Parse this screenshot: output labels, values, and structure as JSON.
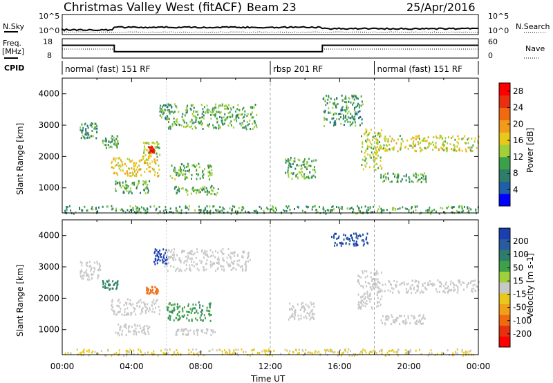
{
  "header": {
    "site": "Christmas Valley West (fitACF)",
    "beam": "Beam 23",
    "date": "25/Apr/2016"
  },
  "top_panels": {
    "nsky_label": "N.Sky",
    "nsearch_label": "N.Search",
    "nsky_ticks": [
      "10^5",
      "10^0"
    ],
    "freq_label": "Freq.",
    "freq_unit": "[MHz]",
    "freq_ticks": [
      "18",
      "8"
    ],
    "nave_label": "Nave",
    "nave_ticks": [
      "60",
      "0"
    ],
    "cpid_label": "CPID",
    "cpid_modes": [
      {
        "label": "normal (fast) 151 RF",
        "start_hour": 0
      },
      {
        "label": "rbsp 201 RF",
        "start_hour": 12
      },
      {
        "label": "normal (fast) 151 RF",
        "start_hour": 18
      }
    ],
    "freq_series_mhz": [
      {
        "from": 0,
        "to": 3,
        "value": 14.6
      },
      {
        "from": 3,
        "to": 15,
        "value": 11.3
      },
      {
        "from": 15,
        "to": 24,
        "value": 14.6
      }
    ]
  },
  "chart_data": [
    {
      "type": "heatmap",
      "title": "",
      "xlabel": "Time UT",
      "ylabel": "Slant Range [km]",
      "xlim": [
        0,
        24
      ],
      "ylim": [
        200,
        4500
      ],
      "yticks": [
        1000,
        2000,
        3000,
        4000
      ],
      "colorbar": {
        "label": "Power [dB]",
        "ticks": [
          4,
          8,
          12,
          16,
          20,
          24,
          28
        ],
        "range": [
          0,
          30
        ],
        "colors": [
          "#0000ff",
          "#1f5fa8",
          "#2e7d6a",
          "#3aa04a",
          "#9fd03a",
          "#e8c81a",
          "#f29a1a",
          "#f06a10",
          "#e83010",
          "#ff0000"
        ]
      },
      "echo_regions": [
        {
          "t0": 1.0,
          "t1": 2.0,
          "r0": 2600,
          "r1": 3100,
          "value": 9
        },
        {
          "t0": 2.3,
          "t1": 3.2,
          "r0": 2300,
          "r1": 2700,
          "value": 10
        },
        {
          "t0": 2.8,
          "t1": 5.6,
          "r0": 1400,
          "r1": 2000,
          "value": 17
        },
        {
          "t0": 3.0,
          "t1": 5.0,
          "r0": 850,
          "r1": 1250,
          "value": 10
        },
        {
          "t0": 4.6,
          "t1": 5.6,
          "r0": 2000,
          "r1": 2500,
          "value": 14
        },
        {
          "t0": 4.9,
          "t1": 5.3,
          "r0": 2150,
          "r1": 2350,
          "value": 28
        },
        {
          "t0": 5.6,
          "t1": 6.3,
          "r0": 3200,
          "r1": 3700,
          "value": 9
        },
        {
          "t0": 6.0,
          "t1": 11.2,
          "r0": 2900,
          "r1": 3700,
          "value": 11
        },
        {
          "t0": 6.2,
          "t1": 8.6,
          "r0": 1300,
          "r1": 1800,
          "value": 12
        },
        {
          "t0": 6.4,
          "t1": 9.0,
          "r0": 800,
          "r1": 1100,
          "value": 11
        },
        {
          "t0": 12.8,
          "t1": 14.6,
          "r0": 1300,
          "r1": 2000,
          "value": 11
        },
        {
          "t0": 15.0,
          "t1": 17.3,
          "r0": 3000,
          "r1": 4000,
          "value": 9
        },
        {
          "t0": 17.2,
          "t1": 18.4,
          "r0": 1600,
          "r1": 2900,
          "value": 14
        },
        {
          "t0": 18.0,
          "t1": 24.0,
          "r0": 2200,
          "r1": 2700,
          "value": 15
        },
        {
          "t0": 18.3,
          "t1": 21.0,
          "r0": 1200,
          "r1": 1500,
          "value": 11
        },
        {
          "t0": 0.0,
          "t1": 24.0,
          "r0": 200,
          "r1": 450,
          "value": 10
        }
      ]
    },
    {
      "type": "heatmap",
      "title": "",
      "xlabel": "Time UT",
      "ylabel": "Slant Range [km]",
      "xlim": [
        0,
        24
      ],
      "ylim": [
        200,
        4500
      ],
      "yticks": [
        1000,
        2000,
        3000,
        4000
      ],
      "xticks": [
        "00:00",
        "04:00",
        "08:00",
        "12:00",
        "16:00",
        "20:00",
        "00:00"
      ],
      "colorbar": {
        "label": "Velocity [m s-1]",
        "ticks": [
          200,
          100,
          50,
          15,
          -15,
          -50,
          -100,
          -200
        ],
        "colors": [
          "#1a3fb0",
          "#2a5aa0",
          "#2e7d6a",
          "#3fa04a",
          "#9fd03a",
          "#c8c8c8",
          "#e8c81a",
          "#f2a01a",
          "#f06a10",
          "#e83010",
          "#ff0000"
        ]
      },
      "echo_regions": [
        {
          "t0": 1.0,
          "t1": 2.2,
          "r0": 2600,
          "r1": 3200,
          "value": 0
        },
        {
          "t0": 2.3,
          "t1": 3.2,
          "r0": 2300,
          "r1": 2600,
          "value": 60
        },
        {
          "t0": 2.8,
          "t1": 5.6,
          "r0": 1500,
          "r1": 2000,
          "value": 0
        },
        {
          "t0": 4.8,
          "t1": 5.5,
          "r0": 2150,
          "r1": 2400,
          "value": -150
        },
        {
          "t0": 5.2,
          "t1": 6.0,
          "r0": 3100,
          "r1": 3600,
          "value": 250
        },
        {
          "t0": 5.8,
          "t1": 10.8,
          "r0": 2900,
          "r1": 3600,
          "value": 0
        },
        {
          "t0": 6.0,
          "t1": 8.6,
          "r0": 1300,
          "r1": 1900,
          "value": 40
        },
        {
          "t0": 3.0,
          "t1": 5.0,
          "r0": 850,
          "r1": 1200,
          "value": 0
        },
        {
          "t0": 6.4,
          "t1": 8.8,
          "r0": 850,
          "r1": 1050,
          "value": 0
        },
        {
          "t0": 13.0,
          "t1": 14.5,
          "r0": 1350,
          "r1": 1900,
          "value": 0
        },
        {
          "t0": 15.5,
          "t1": 17.6,
          "r0": 3700,
          "r1": 4100,
          "value": 200
        },
        {
          "t0": 17.0,
          "t1": 18.4,
          "r0": 1700,
          "r1": 2900,
          "value": 0
        },
        {
          "t0": 18.0,
          "t1": 24.0,
          "r0": 2200,
          "r1": 2600,
          "value": 0
        },
        {
          "t0": 18.3,
          "t1": 21.0,
          "r0": 1200,
          "r1": 1500,
          "value": 0
        },
        {
          "t0": 0.0,
          "t1": 24.0,
          "r0": 200,
          "r1": 400,
          "value": -20
        }
      ]
    }
  ]
}
